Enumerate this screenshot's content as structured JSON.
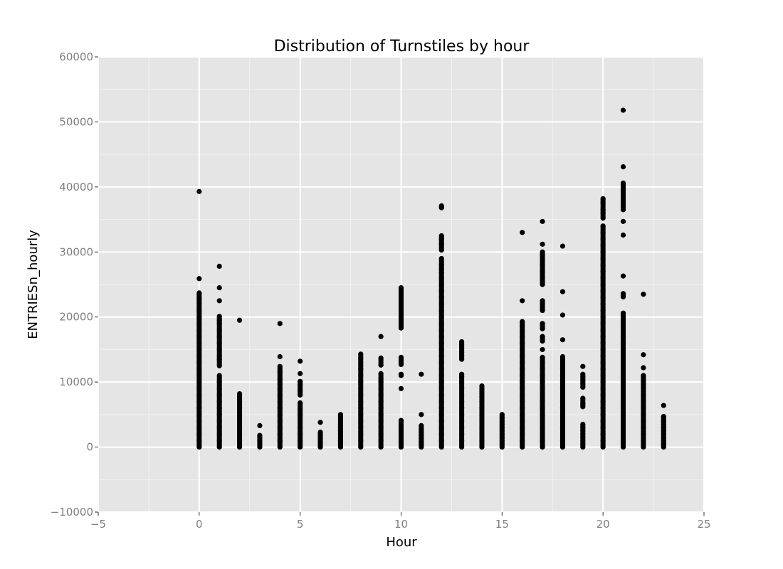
{
  "chart_data": {
    "type": "scatter",
    "title": "Distribution of Turnstiles by hour",
    "xlabel": "Hour",
    "ylabel": "ENTRIESn_hourly",
    "xlim": [
      -5,
      25
    ],
    "ylim": [
      -10000,
      60000
    ],
    "x_ticks": [
      -5,
      0,
      5,
      10,
      15,
      20,
      25
    ],
    "x_tick_labels": [
      "−5",
      "0",
      "5",
      "10",
      "15",
      "20",
      "25"
    ],
    "y_ticks": [
      -10000,
      0,
      10000,
      20000,
      30000,
      40000,
      50000,
      60000
    ],
    "y_tick_labels": [
      "−10000",
      "0",
      "10000",
      "20000",
      "30000",
      "40000",
      "50000",
      "60000"
    ],
    "grid": true,
    "colors": {
      "panel": "#e5e5e5",
      "grid_major": "#ffffff",
      "grid_minor": "#f2f2f2",
      "point": "#000000"
    },
    "series": [
      {
        "hour": 0,
        "values": [
          39300,
          25900,
          23700,
          22800,
          22100,
          21000,
          19900,
          19000,
          18000,
          17000,
          16000,
          15000,
          14000,
          13000,
          12000,
          11000,
          10000,
          9000,
          8000,
          7000,
          6000,
          5000,
          4000,
          3000,
          2000,
          1000,
          0
        ]
      },
      {
        "hour": 1,
        "values": [
          27800,
          24500,
          22500,
          20100,
          19500,
          19000,
          18000,
          17000,
          16000,
          15000,
          14000,
          13500,
          12500,
          11000,
          10000,
          9000,
          8000,
          7000,
          6000,
          5000,
          4000,
          3000,
          2000,
          1000,
          0
        ]
      },
      {
        "hour": 2,
        "values": [
          19500,
          8200,
          7500,
          7000,
          6000,
          5000,
          4000,
          3000,
          2000,
          1000,
          0
        ]
      },
      {
        "hour": 3,
        "values": [
          3300,
          1800,
          1500,
          1000,
          500,
          0
        ]
      },
      {
        "hour": 4,
        "values": [
          19000,
          13900,
          12400,
          11500,
          10400,
          9700,
          9000,
          8000,
          7000,
          6000,
          5000,
          4000,
          3000,
          2000,
          1000,
          0
        ]
      },
      {
        "hour": 5,
        "values": [
          13200,
          11300,
          10100,
          9600,
          8800,
          8000,
          6800,
          5800,
          5000,
          4000,
          3000,
          2000,
          1000,
          0
        ]
      },
      {
        "hour": 6,
        "values": [
          3800,
          2300,
          1800,
          1300,
          800,
          400,
          0
        ]
      },
      {
        "hour": 7,
        "values": [
          5000,
          4000,
          3500,
          3000,
          2500,
          2000,
          1500,
          1000,
          500,
          0
        ]
      },
      {
        "hour": 8,
        "values": [
          14300,
          13600,
          13000,
          12500,
          12000,
          11000,
          10000,
          9000,
          8000,
          7000,
          6000,
          5000,
          4000,
          3000,
          2000,
          1000,
          0
        ]
      },
      {
        "hour": 9,
        "values": [
          17000,
          13700,
          12600,
          11300,
          10500,
          10000,
          9000,
          8000,
          7000,
          6000,
          5000,
          4000,
          3000,
          2000,
          1000,
          0
        ]
      },
      {
        "hour": 10,
        "values": [
          24500,
          24000,
          23400,
          22400,
          21500,
          21000,
          20300,
          19500,
          18900,
          18300,
          13800,
          13300,
          12700,
          11200,
          11000,
          9000,
          4100,
          3500,
          3000,
          2500,
          2000,
          1500,
          1000,
          500,
          0
        ]
      },
      {
        "hour": 11,
        "values": [
          11200,
          5000,
          3300,
          2800,
          2300,
          1800,
          1300,
          800,
          400,
          0
        ]
      },
      {
        "hour": 12,
        "values": [
          37100,
          36800,
          32500,
          32000,
          31200,
          30300,
          29000,
          28000,
          27400,
          26800,
          26000,
          25000,
          24000,
          23000,
          22000,
          21000,
          20000,
          19000,
          18000,
          17000,
          16000,
          15000,
          14000,
          13000,
          12000,
          11000,
          10000,
          9000,
          8000,
          7000,
          6000,
          5000,
          4000,
          3000,
          2000,
          1000,
          0
        ]
      },
      {
        "hour": 13,
        "values": [
          16200,
          15700,
          15200,
          14600,
          14100,
          13500,
          11200,
          10800,
          9900,
          9000,
          8000,
          7000,
          6000,
          5000,
          4000,
          3000,
          2000,
          1000,
          0
        ]
      },
      {
        "hour": 14,
        "values": [
          9400,
          8700,
          8200,
          7700,
          7000,
          6000,
          5000,
          4000,
          3000,
          2000,
          1000,
          0
        ]
      },
      {
        "hour": 15,
        "values": [
          5000,
          4500,
          4000,
          3500,
          3000,
          2500,
          2000,
          1500,
          1000,
          500,
          0
        ]
      },
      {
        "hour": 16,
        "values": [
          33000,
          22500,
          19300,
          18600,
          17800,
          17000,
          16000,
          15000,
          14000,
          13000,
          12000,
          11000,
          10000,
          9000,
          8000,
          7000,
          6000,
          5000,
          4000,
          3000,
          2000,
          1000,
          0
        ]
      },
      {
        "hour": 17,
        "values": [
          34700,
          31200,
          30000,
          29500,
          28800,
          28000,
          27200,
          26800,
          26000,
          25000,
          22500,
          22000,
          21000,
          19000,
          18200,
          17000,
          16300,
          15000,
          13800,
          13000,
          12000,
          11000,
          10000,
          9000,
          8000,
          7000,
          6000,
          5000,
          4000,
          3000,
          2000,
          1000,
          0
        ]
      },
      {
        "hour": 18,
        "values": [
          30900,
          23900,
          20300,
          16500,
          13900,
          12800,
          12000,
          11000,
          10000,
          9000,
          8000,
          7000,
          6000,
          5000,
          4000,
          3000,
          2000,
          1000,
          0
        ]
      },
      {
        "hour": 19,
        "values": [
          12400,
          11200,
          10800,
          10300,
          9700,
          9200,
          7500,
          6600,
          6200,
          3500,
          3000,
          2500,
          2000,
          1500,
          1000,
          500,
          0
        ]
      },
      {
        "hour": 20,
        "values": [
          38200,
          37600,
          36500,
          36000,
          35200,
          34000,
          33000,
          32000,
          31000,
          30000,
          29000,
          28000,
          27000,
          26000,
          25000,
          24000,
          23000,
          22000,
          21000,
          20000,
          19000,
          18000,
          17000,
          16000,
          15000,
          14000,
          13000,
          12000,
          11000,
          10000,
          9000,
          8000,
          7000,
          6000,
          5000,
          4000,
          3000,
          2000,
          1000,
          0
        ]
      },
      {
        "hour": 21,
        "values": [
          51800,
          43100,
          40600,
          40200,
          39600,
          39000,
          38300,
          37600,
          37000,
          36500,
          34700,
          32600,
          26300,
          23600,
          23100,
          20600,
          20100,
          19500,
          19000,
          18000,
          17000,
          16000,
          15000,
          14000,
          13000,
          12000,
          11000,
          10000,
          9000,
          8000,
          7000,
          6000,
          5000,
          4000,
          3000,
          2000,
          1000,
          0
        ]
      },
      {
        "hour": 22,
        "values": [
          23500,
          14200,
          12200,
          11000,
          10200,
          9600,
          9000,
          8000,
          7000,
          6000,
          5000,
          4000,
          3000,
          2000,
          1000,
          0
        ]
      },
      {
        "hour": 23,
        "values": [
          6400,
          4700,
          4000,
          3500,
          3000,
          2500,
          2000,
          1500,
          1000,
          500,
          0
        ]
      }
    ]
  }
}
